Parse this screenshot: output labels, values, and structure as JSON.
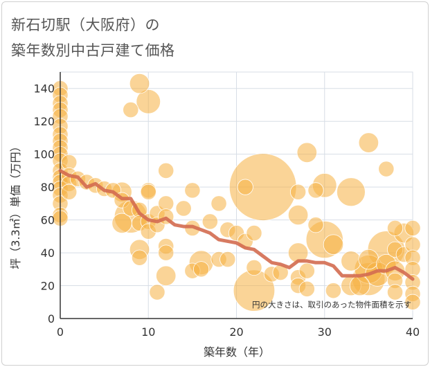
{
  "chart_data": {
    "type": "scatter",
    "title_line1": "新石切駅（大阪府）の",
    "title_line2": "築年数別中古戸建て価格",
    "xlabel": "築年数（年）",
    "ylabel": "坪（3.3㎡）単価（万円）",
    "xlim": [
      0,
      40
    ],
    "ylim": [
      0,
      150
    ],
    "xticks": [
      0,
      10,
      20,
      30,
      40
    ],
    "yticks": [
      0,
      20,
      40,
      60,
      80,
      100,
      120,
      140
    ],
    "grid": true,
    "note": "円の大きさは、取引のあった物件面積を示す",
    "colors": {
      "bubble": "#f5b041",
      "trend": "#d36b50",
      "grid": "#d7dde6",
      "axis": "#333333"
    },
    "bubbles": [
      {
        "x": 0,
        "y": 140,
        "s": 2
      },
      {
        "x": 0,
        "y": 136,
        "s": 2
      },
      {
        "x": 0,
        "y": 131,
        "s": 2
      },
      {
        "x": 0,
        "y": 127,
        "s": 2
      },
      {
        "x": 0,
        "y": 123,
        "s": 2
      },
      {
        "x": 0,
        "y": 117,
        "s": 2
      },
      {
        "x": 0,
        "y": 112,
        "s": 2
      },
      {
        "x": 0,
        "y": 108,
        "s": 2
      },
      {
        "x": 0,
        "y": 104,
        "s": 2
      },
      {
        "x": 0,
        "y": 100,
        "s": 2
      },
      {
        "x": 0,
        "y": 96,
        "s": 2
      },
      {
        "x": 0,
        "y": 90,
        "s": 2
      },
      {
        "x": 0,
        "y": 86,
        "s": 2
      },
      {
        "x": 0,
        "y": 83,
        "s": 2
      },
      {
        "x": 0,
        "y": 79,
        "s": 2
      },
      {
        "x": 0,
        "y": 75,
        "s": 2
      },
      {
        "x": 0,
        "y": 70,
        "s": 2
      },
      {
        "x": 0,
        "y": 63,
        "s": 2
      },
      {
        "x": 0,
        "y": 61,
        "s": 2
      },
      {
        "x": 1,
        "y": 95,
        "s": 2
      },
      {
        "x": 1,
        "y": 87,
        "s": 2
      },
      {
        "x": 1,
        "y": 82,
        "s": 2
      },
      {
        "x": 1,
        "y": 77,
        "s": 2
      },
      {
        "x": 2,
        "y": 85,
        "s": 2
      },
      {
        "x": 3,
        "y": 83,
        "s": 2
      },
      {
        "x": 4,
        "y": 81,
        "s": 2
      },
      {
        "x": 5,
        "y": 79,
        "s": 2
      },
      {
        "x": 6,
        "y": 78,
        "s": 2
      },
      {
        "x": 7,
        "y": 77,
        "s": 3
      },
      {
        "x": 7,
        "y": 72,
        "s": 2
      },
      {
        "x": 7,
        "y": 58,
        "s": 3
      },
      {
        "x": 8,
        "y": 127,
        "s": 2
      },
      {
        "x": 8,
        "y": 62,
        "s": 6
      },
      {
        "x": 8,
        "y": 67,
        "s": 2
      },
      {
        "x": 9,
        "y": 143,
        "s": 3
      },
      {
        "x": 9,
        "y": 66,
        "s": 2
      },
      {
        "x": 9,
        "y": 58,
        "s": 2
      },
      {
        "x": 9,
        "y": 42,
        "s": 3
      },
      {
        "x": 9,
        "y": 37,
        "s": 2
      },
      {
        "x": 10,
        "y": 132,
        "s": 4
      },
      {
        "x": 10,
        "y": 78,
        "s": 2
      },
      {
        "x": 10,
        "y": 77,
        "s": 2
      },
      {
        "x": 10,
        "y": 59,
        "s": 2
      },
      {
        "x": 10,
        "y": 53,
        "s": 2
      },
      {
        "x": 11,
        "y": 64,
        "s": 2
      },
      {
        "x": 11,
        "y": 57,
        "s": 2
      },
      {
        "x": 11,
        "y": 16,
        "s": 2
      },
      {
        "x": 12,
        "y": 90,
        "s": 2
      },
      {
        "x": 12,
        "y": 70,
        "s": 2
      },
      {
        "x": 12,
        "y": 62,
        "s": 2
      },
      {
        "x": 12,
        "y": 44,
        "s": 2
      },
      {
        "x": 12,
        "y": 40,
        "s": 2
      },
      {
        "x": 12,
        "y": 26,
        "s": 3
      },
      {
        "x": 14,
        "y": 67,
        "s": 2
      },
      {
        "x": 15,
        "y": 78,
        "s": 2
      },
      {
        "x": 15,
        "y": 55,
        "s": 2
      },
      {
        "x": 15,
        "y": 29,
        "s": 2
      },
      {
        "x": 16,
        "y": 34,
        "s": 4
      },
      {
        "x": 16,
        "y": 30,
        "s": 2
      },
      {
        "x": 17,
        "y": 59,
        "s": 2
      },
      {
        "x": 18,
        "y": 70,
        "s": 2
      },
      {
        "x": 18,
        "y": 36,
        "s": 2
      },
      {
        "x": 19,
        "y": 54,
        "s": 2
      },
      {
        "x": 19,
        "y": 36,
        "s": 2
      },
      {
        "x": 20,
        "y": 52,
        "s": 2
      },
      {
        "x": 21,
        "y": 80,
        "s": 2
      },
      {
        "x": 21,
        "y": 47,
        "s": 2
      },
      {
        "x": 22,
        "y": 52,
        "s": 2
      },
      {
        "x": 22,
        "y": 31,
        "s": 2
      },
      {
        "x": 23,
        "y": 80,
        "s": 14
      },
      {
        "x": 22,
        "y": 17,
        "s": 8
      },
      {
        "x": 24,
        "y": 27,
        "s": 2
      },
      {
        "x": 25,
        "y": 28,
        "s": 2
      },
      {
        "x": 27,
        "y": 77,
        "s": 2
      },
      {
        "x": 27,
        "y": 63,
        "s": 3
      },
      {
        "x": 27,
        "y": 40,
        "s": 3
      },
      {
        "x": 27,
        "y": 25,
        "s": 2
      },
      {
        "x": 27,
        "y": 20,
        "s": 2
      },
      {
        "x": 28,
        "y": 101,
        "s": 3
      },
      {
        "x": 28,
        "y": 29,
        "s": 2
      },
      {
        "x": 28,
        "y": 18,
        "s": 2
      },
      {
        "x": 29,
        "y": 78,
        "s": 2
      },
      {
        "x": 29,
        "y": 57,
        "s": 2
      },
      {
        "x": 30,
        "y": 81,
        "s": 4
      },
      {
        "x": 30,
        "y": 48,
        "s": 7
      },
      {
        "x": 31,
        "y": 45,
        "s": 3
      },
      {
        "x": 31,
        "y": 17,
        "s": 2
      },
      {
        "x": 33,
        "y": 77,
        "s": 5
      },
      {
        "x": 33,
        "y": 35,
        "s": 3
      },
      {
        "x": 33,
        "y": 20,
        "s": 3
      },
      {
        "x": 34,
        "y": 20,
        "s": 3
      },
      {
        "x": 35,
        "y": 107,
        "s": 3
      },
      {
        "x": 35,
        "y": 36,
        "s": 3
      },
      {
        "x": 35,
        "y": 30,
        "s": 5
      },
      {
        "x": 35,
        "y": 24,
        "s": 6
      },
      {
        "x": 36,
        "y": 27,
        "s": 4
      },
      {
        "x": 37,
        "y": 91,
        "s": 2
      },
      {
        "x": 37,
        "y": 42,
        "s": 7
      },
      {
        "x": 37,
        "y": 33,
        "s": 3
      },
      {
        "x": 38,
        "y": 55,
        "s": 2
      },
      {
        "x": 38,
        "y": 42,
        "s": 2
      },
      {
        "x": 38,
        "y": 29,
        "s": 3
      },
      {
        "x": 38,
        "y": 23,
        "s": 2
      },
      {
        "x": 38,
        "y": 16,
        "s": 2
      },
      {
        "x": 39,
        "y": 52,
        "s": 3
      },
      {
        "x": 39,
        "y": 39,
        "s": 2
      },
      {
        "x": 40,
        "y": 55,
        "s": 2
      },
      {
        "x": 40,
        "y": 45,
        "s": 2
      },
      {
        "x": 40,
        "y": 37,
        "s": 2
      },
      {
        "x": 40,
        "y": 30,
        "s": 2
      },
      {
        "x": 40,
        "y": 22,
        "s": 2
      },
      {
        "x": 40,
        "y": 15,
        "s": 2
      },
      {
        "x": 40,
        "y": 10,
        "s": 2
      }
    ],
    "trend": {
      "x": [
        0,
        1,
        2,
        3,
        4,
        5,
        6,
        7,
        8,
        9,
        10,
        11,
        12,
        13,
        14,
        15,
        16,
        17,
        18,
        19,
        20,
        21,
        22,
        23,
        24,
        25,
        26,
        27,
        28,
        29,
        30,
        31,
        32,
        33,
        34,
        35,
        36,
        37,
        38,
        39,
        40
      ],
      "y": [
        90,
        87,
        86,
        80,
        82,
        78,
        77,
        73,
        73,
        64,
        60,
        59,
        61,
        57,
        56,
        56,
        54,
        52,
        48,
        47,
        46,
        43,
        42,
        38,
        34,
        33,
        31,
        35,
        35,
        34,
        34,
        32,
        26,
        26,
        26,
        27,
        29,
        29,
        31,
        28,
        24
      ]
    }
  }
}
